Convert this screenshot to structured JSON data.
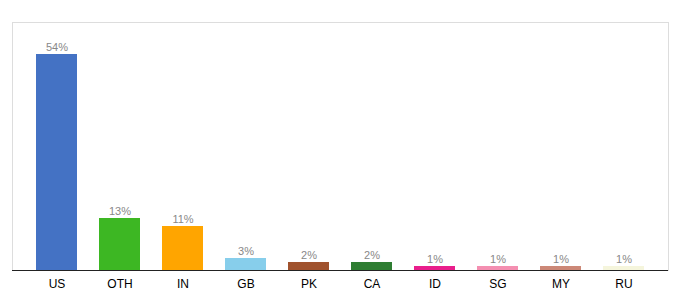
{
  "chart_data": {
    "type": "bar",
    "categories": [
      "US",
      "OTH",
      "IN",
      "GB",
      "PK",
      "CA",
      "ID",
      "SG",
      "MY",
      "RU"
    ],
    "values": [
      54,
      13,
      11,
      3,
      2,
      2,
      1,
      1,
      1,
      1
    ],
    "value_labels": [
      "54%",
      "13%",
      "11%",
      "3%",
      "2%",
      "2%",
      "1%",
      "1%",
      "1%",
      "1%"
    ],
    "colors": [
      "#4472C4",
      "#3DB723",
      "#FFA500",
      "#87CEEB",
      "#A0522D",
      "#2E7D32",
      "#E91E8C",
      "#F48FB1",
      "#CC8877",
      "#F5F5DC"
    ],
    "ylim": [
      0,
      62
    ],
    "grid": false,
    "data_labels": true,
    "tick_labels": "x"
  }
}
